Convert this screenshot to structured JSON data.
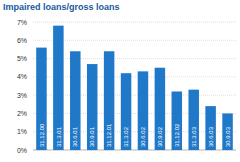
{
  "chart_data": {
    "type": "bar",
    "title": "Impaired loans/gross loans",
    "categories": [
      "31.12.00",
      "31.3.01",
      "30.6.01",
      "30.9.01",
      "31.12.01",
      "31.3.02",
      "30.6.02",
      "30.9.02",
      "31.12.02",
      "31.3.03",
      "30.6.03",
      "30.9.03"
    ],
    "values": [
      5.6,
      6.8,
      5.4,
      4.7,
      5.4,
      4.2,
      4.3,
      4.5,
      3.2,
      3.3,
      2.4,
      2.0
    ],
    "color": "#1f78c8",
    "ylim": [
      0,
      7
    ],
    "yticks": [
      {
        "value": 0,
        "label": "0%"
      },
      {
        "value": 1,
        "label": "1%"
      },
      {
        "value": 2,
        "label": "2%"
      },
      {
        "value": 3,
        "label": "3%"
      },
      {
        "value": 4,
        "label": "4%"
      },
      {
        "value": 5,
        "label": "5%"
      },
      {
        "value": 6,
        "label": "6%"
      },
      {
        "value": 7,
        "label": "7%"
      }
    ],
    "grid": true
  }
}
